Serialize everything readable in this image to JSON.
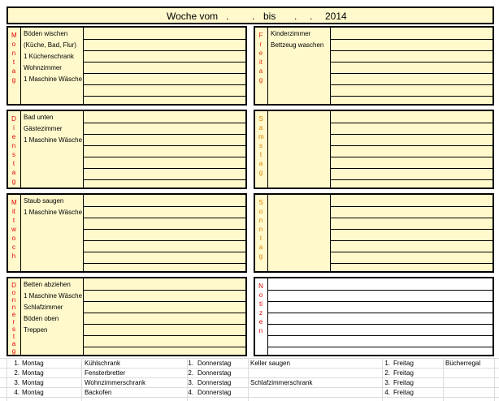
{
  "title": {
    "prefix": "Woche vom",
    "dot1": ".",
    "dot2": ".",
    "bis": "bis",
    "dot3": ".",
    "dot4": ".",
    "year": "2014"
  },
  "days": [
    {
      "name": "Montag",
      "color": "#e00000",
      "tasks": [
        "Böden wischen",
        "(Küche, Bad, Flur)",
        "1 Küchenschrank",
        "Wohnzimmer",
        "1 Maschine Wäsche"
      ]
    },
    {
      "name": "Dienstag",
      "color": "#e00000",
      "tasks": [
        "Bad unten",
        "Gästezimmer",
        "1 Maschine Wäsche"
      ]
    },
    {
      "name": "Mittwoch",
      "color": "#e00000",
      "tasks": [
        "Staub saugen",
        "1 Maschine Wäsche"
      ]
    },
    {
      "name": "Donnerstag",
      "color": "#e00000",
      "tasks": [
        "Betten abziehen",
        "1 Maschine Wäsche",
        "Schlafzimmer",
        "Böden oben",
        "Treppen"
      ]
    },
    {
      "name": "Freitag",
      "color": "#e03000",
      "tasks": [
        "Kinderzimmer",
        "Bettzeug waschen"
      ]
    },
    {
      "name": "Samstag",
      "color": "#e08000",
      "tasks": []
    },
    {
      "name": "Sonntag",
      "color": "#e08000",
      "tasks": []
    }
  ],
  "notes": {
    "name": "Notizen",
    "color": "#e00000"
  },
  "rotation": [
    [
      {
        "number": "1.",
        "day": "Montag",
        "task": "Kühlschrank"
      },
      {
        "number": "1.",
        "day": "Donnerstag",
        "task": "Keller saugen"
      },
      {
        "number": "1.",
        "day": "Freitag",
        "task": "Bücherregal"
      }
    ],
    [
      {
        "number": "2.",
        "day": "Montag",
        "task": "Fensterbretter"
      },
      {
        "number": "2.",
        "day": "Donnerstag"
      },
      {
        "number": "2.",
        "day": "Freitag"
      }
    ],
    [
      {
        "number": "3.",
        "day": "Montag",
        "task": "Wohnzimmerschrank"
      },
      {
        "number": "3.",
        "day": "Donnerstag",
        "task": "Schlafzimmerschrank"
      },
      {
        "number": "3.",
        "day": "Freitag"
      }
    ],
    [
      {
        "number": "4.",
        "day": "Montag",
        "task": "Backofen"
      },
      {
        "number": "4.",
        "day": "Donnerstag"
      },
      {
        "number": "4.",
        "day": "Freitag"
      }
    ]
  ]
}
